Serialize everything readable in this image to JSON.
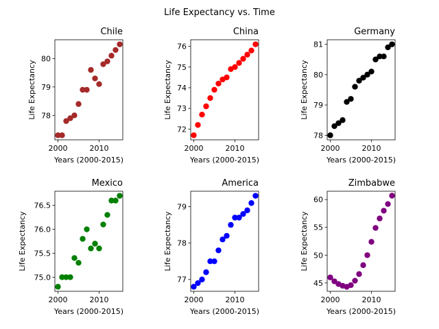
{
  "figure_title": "Life Expectancy vs. Time",
  "chart_data": [
    {
      "type": "scatter",
      "title": "Chile",
      "xlabel": "Years (2000-2015)",
      "ylabel": "Life Expectancy",
      "color": "#a52a2a",
      "x": [
        2000,
        2001,
        2002,
        2003,
        2004,
        2005,
        2006,
        2007,
        2008,
        2009,
        2010,
        2011,
        2012,
        2013,
        2014,
        2015
      ],
      "y": [
        77.3,
        77.3,
        77.8,
        77.9,
        78.0,
        78.4,
        78.9,
        78.9,
        79.6,
        79.3,
        79.1,
        79.8,
        79.9,
        80.1,
        80.3,
        80.5
      ],
      "xlim": [
        1999.25,
        2015.75
      ],
      "ylim": [
        77.14,
        80.66
      ],
      "xticks": [
        2000,
        2010
      ],
      "yticks": [
        78,
        79,
        80
      ]
    },
    {
      "type": "scatter",
      "title": "China",
      "xlabel": "Years (2000-2015)",
      "ylabel": "Life Expectancy",
      "color": "#ff0000",
      "x": [
        2000,
        2001,
        2002,
        2003,
        2004,
        2005,
        2006,
        2007,
        2008,
        2009,
        2010,
        2011,
        2012,
        2013,
        2014,
        2015
      ],
      "y": [
        71.7,
        72.2,
        72.7,
        73.1,
        73.5,
        73.9,
        74.2,
        74.4,
        74.5,
        74.9,
        75.0,
        75.2,
        75.4,
        75.6,
        75.8,
        76.1
      ],
      "xlim": [
        1999.25,
        2015.75
      ],
      "ylim": [
        71.48,
        76.32
      ],
      "xticks": [
        2000,
        2010
      ],
      "yticks": [
        72,
        73,
        74,
        75,
        76
      ]
    },
    {
      "type": "scatter",
      "title": "Germany",
      "xlabel": "Years (2000-2015)",
      "ylabel": "Life Expectancy",
      "color": "#000000",
      "x": [
        2000,
        2001,
        2002,
        2003,
        2004,
        2005,
        2006,
        2007,
        2008,
        2009,
        2010,
        2011,
        2012,
        2013,
        2014,
        2015
      ],
      "y": [
        78.0,
        78.3,
        78.4,
        78.5,
        79.1,
        79.2,
        79.6,
        79.8,
        79.9,
        80.0,
        80.1,
        80.5,
        80.6,
        80.6,
        80.9,
        81.0
      ],
      "xlim": [
        1999.25,
        2015.75
      ],
      "ylim": [
        77.85,
        81.15
      ],
      "xticks": [
        2000,
        2010
      ],
      "yticks": [
        78,
        79,
        80,
        81
      ]
    },
    {
      "type": "scatter",
      "title": "Mexico",
      "xlabel": "Years (2000-2015)",
      "ylabel": "Life Expectancy",
      "color": "#008000",
      "x": [
        2000,
        2001,
        2002,
        2003,
        2004,
        2005,
        2006,
        2007,
        2008,
        2009,
        2010,
        2011,
        2012,
        2013,
        2014,
        2015
      ],
      "y": [
        74.8,
        75.0,
        75.0,
        75.0,
        75.4,
        75.3,
        75.8,
        76.0,
        75.6,
        75.7,
        75.6,
        76.1,
        76.3,
        76.6,
        76.6,
        76.7
      ],
      "xlim": [
        1999.25,
        2015.75
      ],
      "ylim": [
        74.705,
        76.795
      ],
      "xticks": [
        2000,
        2010
      ],
      "yticks": [
        75.0,
        75.5,
        76.0,
        76.5
      ],
      "ytick_labels": [
        "75.0",
        "75.5",
        "76.0",
        "76.5"
      ]
    },
    {
      "type": "scatter",
      "title": "America",
      "xlabel": "Years (2000-2015)",
      "ylabel": "Life Expectancy",
      "color": "#0000ff",
      "x": [
        2000,
        2001,
        2002,
        2003,
        2004,
        2005,
        2006,
        2007,
        2008,
        2009,
        2010,
        2011,
        2012,
        2013,
        2014,
        2015
      ],
      "y": [
        76.8,
        76.9,
        77.0,
        77.2,
        77.5,
        77.5,
        77.8,
        78.1,
        78.2,
        78.5,
        78.7,
        78.7,
        78.8,
        78.9,
        79.1,
        79.3
      ],
      "xlim": [
        1999.25,
        2015.75
      ],
      "ylim": [
        76.675,
        79.425
      ],
      "xticks": [
        2000,
        2010
      ],
      "yticks": [
        77,
        78,
        79
      ]
    },
    {
      "type": "scatter",
      "title": "Zimbabwe",
      "xlabel": "Years (2000-2015)",
      "ylabel": "Life Expectancy",
      "color": "#800080",
      "x": [
        2000,
        2001,
        2002,
        2003,
        2004,
        2005,
        2006,
        2007,
        2008,
        2009,
        2010,
        2011,
        2012,
        2013,
        2014,
        2015
      ],
      "y": [
        46.0,
        45.3,
        44.8,
        44.5,
        44.3,
        44.6,
        45.4,
        46.6,
        48.2,
        50.0,
        52.4,
        54.9,
        56.6,
        58.0,
        59.2,
        60.7
      ],
      "xlim": [
        1999.25,
        2015.75
      ],
      "ylim": [
        43.5,
        61.5
      ],
      "xticks": [
        2000,
        2010
      ],
      "yticks": [
        45,
        50,
        55,
        60
      ]
    }
  ]
}
